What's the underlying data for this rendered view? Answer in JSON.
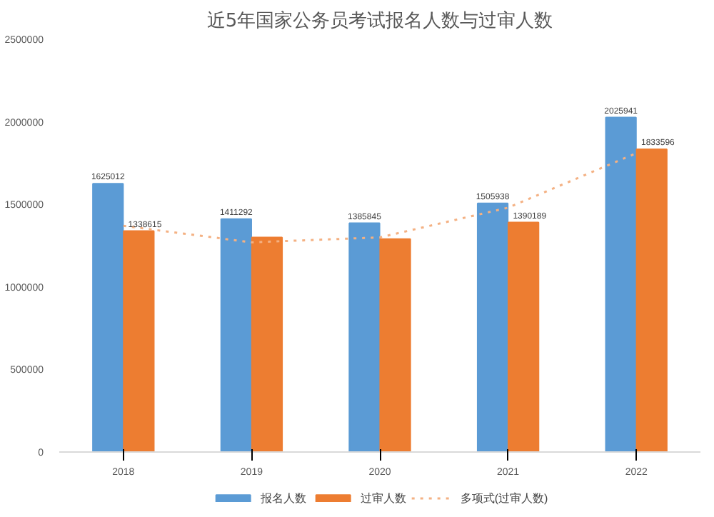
{
  "chart_data": {
    "type": "bar",
    "title": "近5年国家公务员考试报名人数与过审人数",
    "categories": [
      "2018",
      "2019",
      "2020",
      "2021",
      "2022"
    ],
    "series": [
      {
        "name": "报名人数",
        "color": "#5b9bd5",
        "values": [
          1625012,
          1411292,
          1385845,
          1505938,
          2025941
        ],
        "value_labels": [
          "1625012",
          "1411292",
          "1385845",
          "1505938",
          "2025941"
        ]
      },
      {
        "name": "过审人数",
        "color": "#ed7d31",
        "values": [
          1338615,
          1300000,
          1290000,
          1390189,
          1833596
        ],
        "value_labels": [
          "1338615",
          null,
          null,
          "1390189",
          "1833596"
        ]
      },
      {
        "name": "多项式(过审人数)",
        "type": "line",
        "line_style": "dotted",
        "color": "#f4b183",
        "values": [
          1370000,
          1270000,
          1300000,
          1480000,
          1810000
        ]
      }
    ],
    "ylim": [
      0,
      2500000
    ],
    "yticks": [
      0,
      500000,
      1000000,
      1500000,
      2000000,
      2500000
    ],
    "grid": false,
    "legend": "bottom"
  }
}
